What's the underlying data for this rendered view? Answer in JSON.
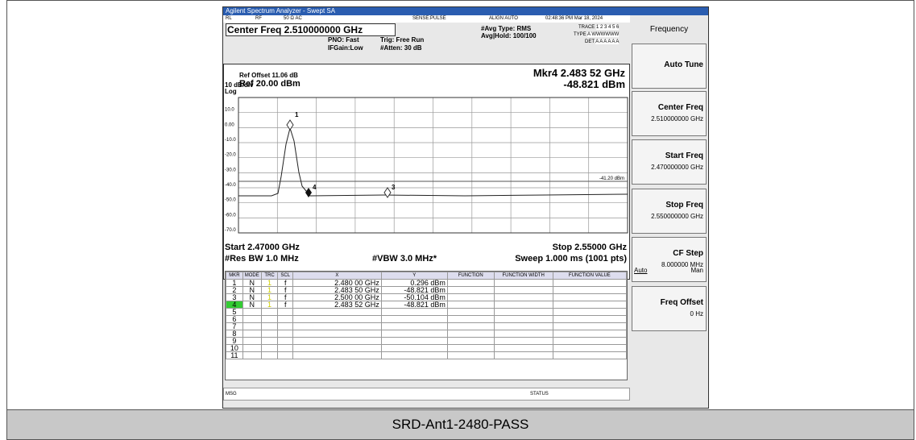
{
  "window": {
    "title": "Agilent Spectrum Analyzer - Swept SA",
    "status": [
      "RL",
      "RF",
      "50 Ω  AC",
      "SENSE:PULSE",
      "ALIGN AUTO",
      "02:48:36 PM Mar 18, 2024"
    ]
  },
  "settings": {
    "center_freq": "Center Freq 2.510000000 GHz",
    "pno": "PNO: Fast",
    "ifgain": "IFGain:Low",
    "trig": "Trig: Free Run",
    "atten": "#Atten: 30 dB",
    "avg_type": "#Avg Type: RMS",
    "avg_hold": "Avg|Hold: 100/100",
    "trace": "TRACE",
    "trace_nums": "1 2 3 4 5 6",
    "type": "TYPE",
    "type_val": "A WWWWWW",
    "det": "DET",
    "det_val": "A A A A A A"
  },
  "plot": {
    "ref_offset": "Ref Offset 11.06 dB",
    "scale": "10 dB/div",
    "ref": "Ref 20.00 dBm",
    "log": "Log",
    "marker_readout": "Mkr4 2.483 52 GHz",
    "marker_value": "-48.821 dBm",
    "y_labels": [
      "10.0",
      "0.00",
      "-10.0",
      "-20.0",
      "-30.0",
      "-40.0",
      "-50.0",
      "-60.0",
      "-70.0"
    ],
    "threshold": "-41.20 dBm",
    "marker_labels": [
      "1",
      "4",
      "3"
    ],
    "start": "Start 2.47000 GHz",
    "stop": "Stop 2.55000 GHz",
    "res_bw": "#Res BW 1.0 MHz",
    "vbw": "#VBW 3.0 MHz*",
    "sweep": "Sweep  1.000 ms (1001 pts)"
  },
  "marker_table": {
    "headers": [
      "MKR",
      "MODE",
      "TRC",
      "SCL",
      "X",
      "Y",
      "FUNCTION",
      "FUNCTION WIDTH",
      "FUNCTION VALUE"
    ],
    "rows": [
      [
        "1",
        "N",
        "1",
        "f",
        "2.480 00 GHz",
        "0.296 dBm"
      ],
      [
        "2",
        "N",
        "1",
        "f",
        "2.483 50 GHz",
        "-48.821 dBm"
      ],
      [
        "3",
        "N",
        "1",
        "f",
        "2.500 00 GHz",
        "-50.104 dBm"
      ],
      [
        "4",
        "N",
        "1",
        "f",
        "2.483 52 GHz",
        "-48.821 dBm"
      ],
      [
        "5"
      ],
      [
        "6"
      ],
      [
        "7"
      ],
      [
        "8"
      ],
      [
        "9"
      ],
      [
        "10"
      ],
      [
        "11"
      ]
    ]
  },
  "softkeys": {
    "header": "Frequency",
    "keys": [
      [
        "Auto Tune"
      ],
      [
        "Center Freq",
        "2.510000000 GHz"
      ],
      [
        "Start Freq",
        "2.470000000 GHz"
      ],
      [
        "Stop Freq",
        "2.550000000 GHz"
      ],
      [
        "CF Step",
        "8.000000 MHz"
      ],
      [
        "Freq Offset",
        "0 Hz"
      ]
    ],
    "auto": "Auto",
    "man": "Man"
  },
  "footer": {
    "msg": "MSG",
    "status": "STATUS"
  },
  "caption": "SRD-Ant1-2480-PASS"
}
